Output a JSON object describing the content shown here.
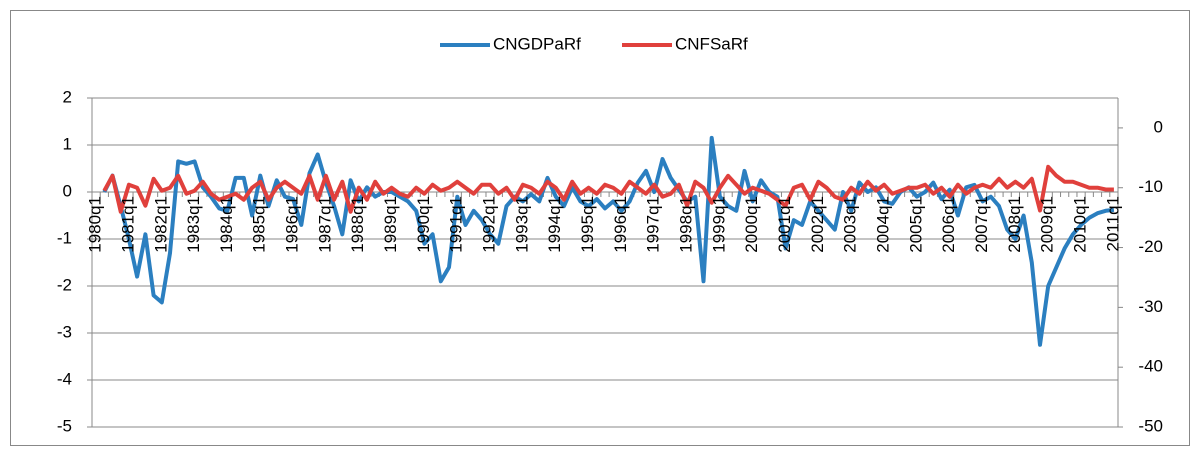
{
  "chart_data": {
    "type": "line",
    "categories": [
      "1980q1",
      null,
      null,
      null,
      "1981q1",
      null,
      null,
      null,
      "1982q1",
      null,
      null,
      null,
      "1983q1",
      null,
      null,
      null,
      "1984q1",
      null,
      null,
      null,
      "1985q1",
      null,
      null,
      null,
      "1986q1",
      null,
      null,
      null,
      "1987q1",
      null,
      null,
      null,
      "1988q1",
      null,
      null,
      null,
      "1989q1",
      null,
      null,
      null,
      "1990q1",
      null,
      null,
      null,
      "1991q1",
      null,
      null,
      null,
      "1992q1",
      null,
      null,
      null,
      "1993q1",
      null,
      null,
      null,
      "1994q1",
      null,
      null,
      null,
      "1995q1",
      null,
      null,
      null,
      "1996q1",
      null,
      null,
      null,
      "1997q1",
      null,
      null,
      null,
      "1998q1",
      null,
      null,
      null,
      "1999q1",
      null,
      null,
      null,
      "2000q1",
      null,
      null,
      null,
      "2001q1",
      null,
      null,
      null,
      "2002q1",
      null,
      null,
      null,
      "2003q1",
      null,
      null,
      null,
      "2004q1",
      null,
      null,
      null,
      "2005q1",
      null,
      null,
      null,
      "2006q1",
      null,
      null,
      null,
      "2007q1",
      null,
      null,
      null,
      "2008q1",
      null,
      null,
      null,
      "2009q1",
      null,
      null,
      null,
      "2010q1",
      null,
      null,
      null,
      "2011q1"
    ],
    "series": [
      {
        "name": "CNGDPaRf",
        "color": "#2b7fc0",
        "values": [
          null,
          0.0,
          0.35,
          -0.3,
          -1.0,
          -1.8,
          -0.9,
          -2.2,
          -2.35,
          -1.3,
          0.65,
          0.6,
          0.65,
          0.1,
          -0.1,
          -0.35,
          -0.4,
          0.3,
          0.3,
          -0.5,
          0.35,
          -0.3,
          0.25,
          -0.1,
          -0.15,
          -0.7,
          0.4,
          0.8,
          0.2,
          -0.3,
          -0.9,
          0.25,
          -0.2,
          0.1,
          -0.1,
          0.0,
          0.0,
          -0.1,
          -0.2,
          -0.4,
          -1.1,
          -0.9,
          -1.9,
          -1.6,
          -0.1,
          -0.7,
          -0.4,
          -0.6,
          -0.9,
          -1.1,
          -0.3,
          -0.1,
          -0.2,
          -0.05,
          -0.2,
          0.3,
          -0.1,
          -0.3,
          0.1,
          -0.2,
          -0.3,
          -0.15,
          -0.35,
          -0.2,
          -0.4,
          -0.2,
          0.2,
          0.45,
          0.0,
          0.7,
          0.3,
          0.05,
          -0.2,
          -0.1,
          -1.9,
          1.15,
          -0.1,
          -0.3,
          -0.4,
          0.45,
          -0.2,
          0.25,
          0.0,
          -0.1,
          -1.2,
          -0.6,
          -0.7,
          -0.2,
          -0.4,
          -0.6,
          -0.8,
          0.0,
          -0.4,
          0.2,
          0.0,
          0.1,
          -0.2,
          -0.25,
          0.0,
          0.1,
          -0.1,
          0.0,
          0.2,
          -0.15,
          0.05,
          -0.5,
          0.1,
          0.15,
          -0.2,
          -0.1,
          -0.3,
          -0.8,
          -1.0,
          -0.5,
          -1.5,
          -3.25,
          -2.0,
          -1.6,
          -1.2,
          -0.9,
          -0.7,
          -0.55,
          -0.45,
          -0.4,
          -0.38
        ]
      },
      {
        "name": "CNFSaRf",
        "color": "#e0403c",
        "axis": "y2",
        "values": [
          null,
          -10.5,
          -8,
          -14,
          -9.5,
          -10,
          -13,
          -8.5,
          -10.5,
          -10,
          -8,
          -11,
          -10.5,
          -9,
          -11,
          -12,
          -11.5,
          -11,
          -12,
          -10,
          -9,
          -12,
          -10,
          -9,
          -10,
          -11,
          -8,
          -12,
          -8,
          -12,
          -9,
          -14,
          -10,
          -12,
          -9,
          -11,
          -10,
          -11,
          -11.5,
          -10,
          -11,
          -9.5,
          -10.5,
          -10,
          -9,
          -10,
          -11,
          -9.5,
          -9.5,
          -11,
          -10,
          -12,
          -9.5,
          -10,
          -11,
          -9,
          -10,
          -12,
          -9,
          -11,
          -10,
          -11,
          -9.5,
          -10,
          -11,
          -9,
          -10,
          -11,
          -9.5,
          -11.5,
          -11,
          -9.5,
          -13,
          -9,
          -10,
          -12.5,
          -10,
          -8,
          -9.5,
          -11,
          -10,
          -10.5,
          -11,
          -12,
          -13,
          -10,
          -9.5,
          -12,
          -9,
          -10,
          -11.5,
          -12,
          -10,
          -11,
          -9,
          -10.5,
          -9.5,
          -11,
          -10.5,
          -10,
          -10,
          -9.5,
          -11,
          -10,
          -11.5,
          -9.5,
          -11,
          -10,
          -9.5,
          -10,
          -8.5,
          -10,
          -9,
          -10,
          -8.5,
          -13.8,
          -6.5,
          -8,
          -9,
          -9,
          -9.5,
          -10,
          -10,
          -10.3,
          -10.3
        ]
      }
    ],
    "ylim": [
      -5,
      2
    ],
    "yticks": [
      -5,
      -4,
      -3,
      -2,
      -1,
      0,
      1,
      2
    ],
    "y2lim": [
      -50,
      5
    ],
    "y2ticks": [
      -50,
      -40,
      -30,
      -20,
      -10,
      0
    ],
    "grid": true,
    "legend": "top"
  }
}
